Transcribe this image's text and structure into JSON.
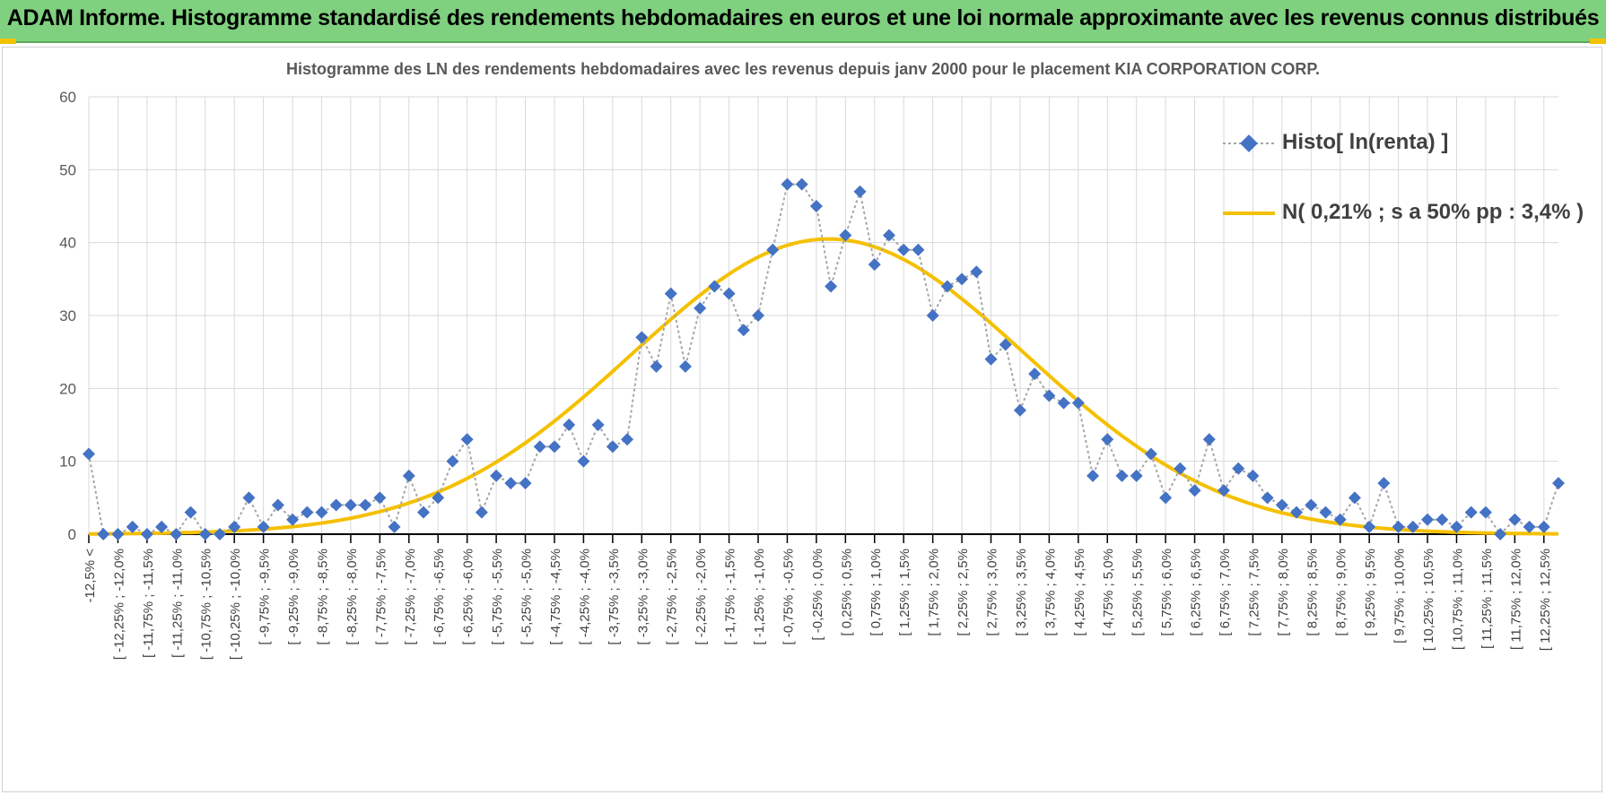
{
  "banner": {
    "title": "ADAM Informe. Histogramme standardisé des rendements hebdomadaires en euros et une loi normale approximante avec les revenus connus distribués"
  },
  "colors": {
    "banner_bg": "#7fd07f",
    "accent": "#f2c200",
    "histo_marker": "#4472c4",
    "histo_line": "#a6a6a6",
    "normal_curve": "#f5c000",
    "grid": "#d9d9d9"
  },
  "chart_data": {
    "type": "line",
    "title": "Histogramme  des LN des rendements hebdomadaires avec les revenus depuis janv 2000 pour le placement KIA CORPORATION CORP.",
    "xlabel": "",
    "ylabel": "",
    "ylim": [
      0,
      60
    ],
    "yticks": [
      0,
      10,
      20,
      30,
      40,
      50,
      60
    ],
    "grid": true,
    "legend_position": "top-right",
    "categories": [
      "-12,5% <",
      "[ -12,25% ; -12,0%",
      "[ -11,75% ; -11,5%",
      "[ -11,25% ; -11,0%",
      "[ -10,75% ; -10,5%",
      "[ -10,25% ; -10,0%",
      "[ -9,75% ; -9,5%",
      "[ -9,25% ; -9,0%",
      "[ -8,75% ; -8,5%",
      "[ -8,25% ; -8,0%",
      "[ -7,75% ; -7,5%",
      "[ -7,25% ; -7,0%",
      "[ -6,75% ; -6,5%",
      "[ -6,25% ; -6,0%",
      "[ -5,75% ; -5,5%",
      "[ -5,25% ; -5,0%",
      "[ -4,75% ; -4,5%",
      "[ -4,25% ; -4,0%",
      "[ -3,75% ; -3,5%",
      "[ -3,25% ; -3,0%",
      "[ -2,75% ; -2,5%",
      "[ -2,25% ; -2,0%",
      "[ -1,75% ; -1,5%",
      "[ -1,25% ; -1,0%",
      "[ -0,75% ; -0,5%",
      "[ -0,25% ; 0,0%",
      "[ 0,25% ; 0,5%",
      "[ 0,75% ; 1,0%",
      "[ 1,25% ; 1,5%",
      "[ 1,75% ; 2,0%",
      "[ 2,25% ; 2,5%",
      "[ 2,75% ; 3,0%",
      "[ 3,25% ; 3,5%",
      "[ 3,75% ; 4,0%",
      "[ 4,25% ; 4,5%",
      "[ 4,75% ; 5,0%",
      "[ 5,25% ; 5,5%",
      "[ 5,75% ; 6,0%",
      "[ 6,25% ; 6,5%",
      "[ 6,75% ; 7,0%",
      "[ 7,25% ; 7,5%",
      "[ 7,75% ; 8,0%",
      "[ 8,25% ; 8,5%",
      "[ 8,75% ; 9,0%",
      "[ 9,25% ; 9,5%",
      "[ 9,75% ; 10,0%",
      "[ 10,25% ; 10,5%",
      "[ 10,75% ; 11,0%",
      "[ 11,25% ; 11,5%",
      "[ 11,75% ; 12,0%",
      "[ 12,25% ; 12,5%"
    ],
    "histo_values": [
      11,
      0,
      0,
      1,
      0,
      1,
      0,
      3,
      0,
      0,
      1,
      5,
      1,
      4,
      2,
      3,
      3,
      4,
      4,
      4,
      5,
      1,
      8,
      3,
      5,
      10,
      13,
      3,
      8,
      7,
      7,
      12,
      12,
      15,
      10,
      15,
      12,
      13,
      27,
      23,
      33,
      23,
      31,
      34,
      33,
      28,
      30,
      39,
      48,
      48,
      45,
      34,
      41,
      47,
      37,
      41,
      39,
      39,
      30,
      34,
      35,
      36,
      24,
      26,
      17,
      22,
      19,
      18,
      18,
      8,
      13,
      8,
      8,
      11,
      5,
      9,
      6,
      13,
      6,
      9,
      8,
      5,
      4,
      3,
      4,
      3,
      2,
      5,
      1,
      7,
      1,
      1,
      2,
      2,
      1,
      3,
      3,
      0,
      2,
      1,
      1,
      7
    ],
    "normal": {
      "mean": 0.21,
      "sd": 3.4,
      "peak": 40.5,
      "xmin": -12.5,
      "xmax": 12.75
    },
    "series": [
      {
        "name": "Histo[ ln(renta) ]"
      },
      {
        "name": "N( 0,21% ; s a 50% pp : 3,4% )"
      }
    ]
  }
}
